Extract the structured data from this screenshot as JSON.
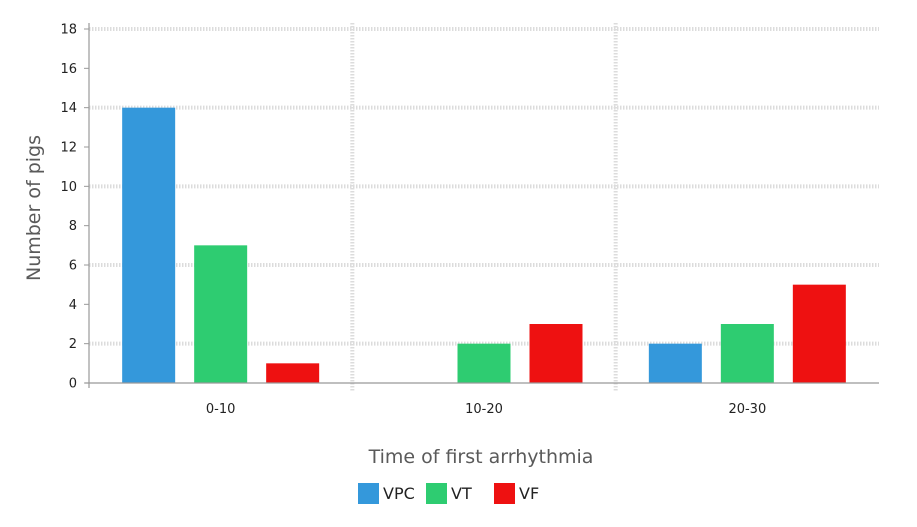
{
  "chart_data": {
    "type": "bar",
    "title": "",
    "xlabel": "Time of first arrhythmia",
    "ylabel": "Number of pigs",
    "categories": [
      "0-10",
      "10-20",
      "20-30"
    ],
    "series": [
      {
        "name": "VPC",
        "color": "#3498db",
        "values": [
          14,
          0,
          2
        ]
      },
      {
        "name": "VT",
        "color": "#2ecc71",
        "values": [
          7,
          2,
          3
        ]
      },
      {
        "name": "VF",
        "color": "#ee1111",
        "values": [
          1,
          3,
          5
        ]
      }
    ],
    "ylim": [
      0,
      18
    ],
    "yticks": [
      0,
      2,
      4,
      6,
      8,
      10,
      12,
      14,
      16,
      18
    ],
    "grid": "dotted",
    "legend": "bottom-center"
  }
}
